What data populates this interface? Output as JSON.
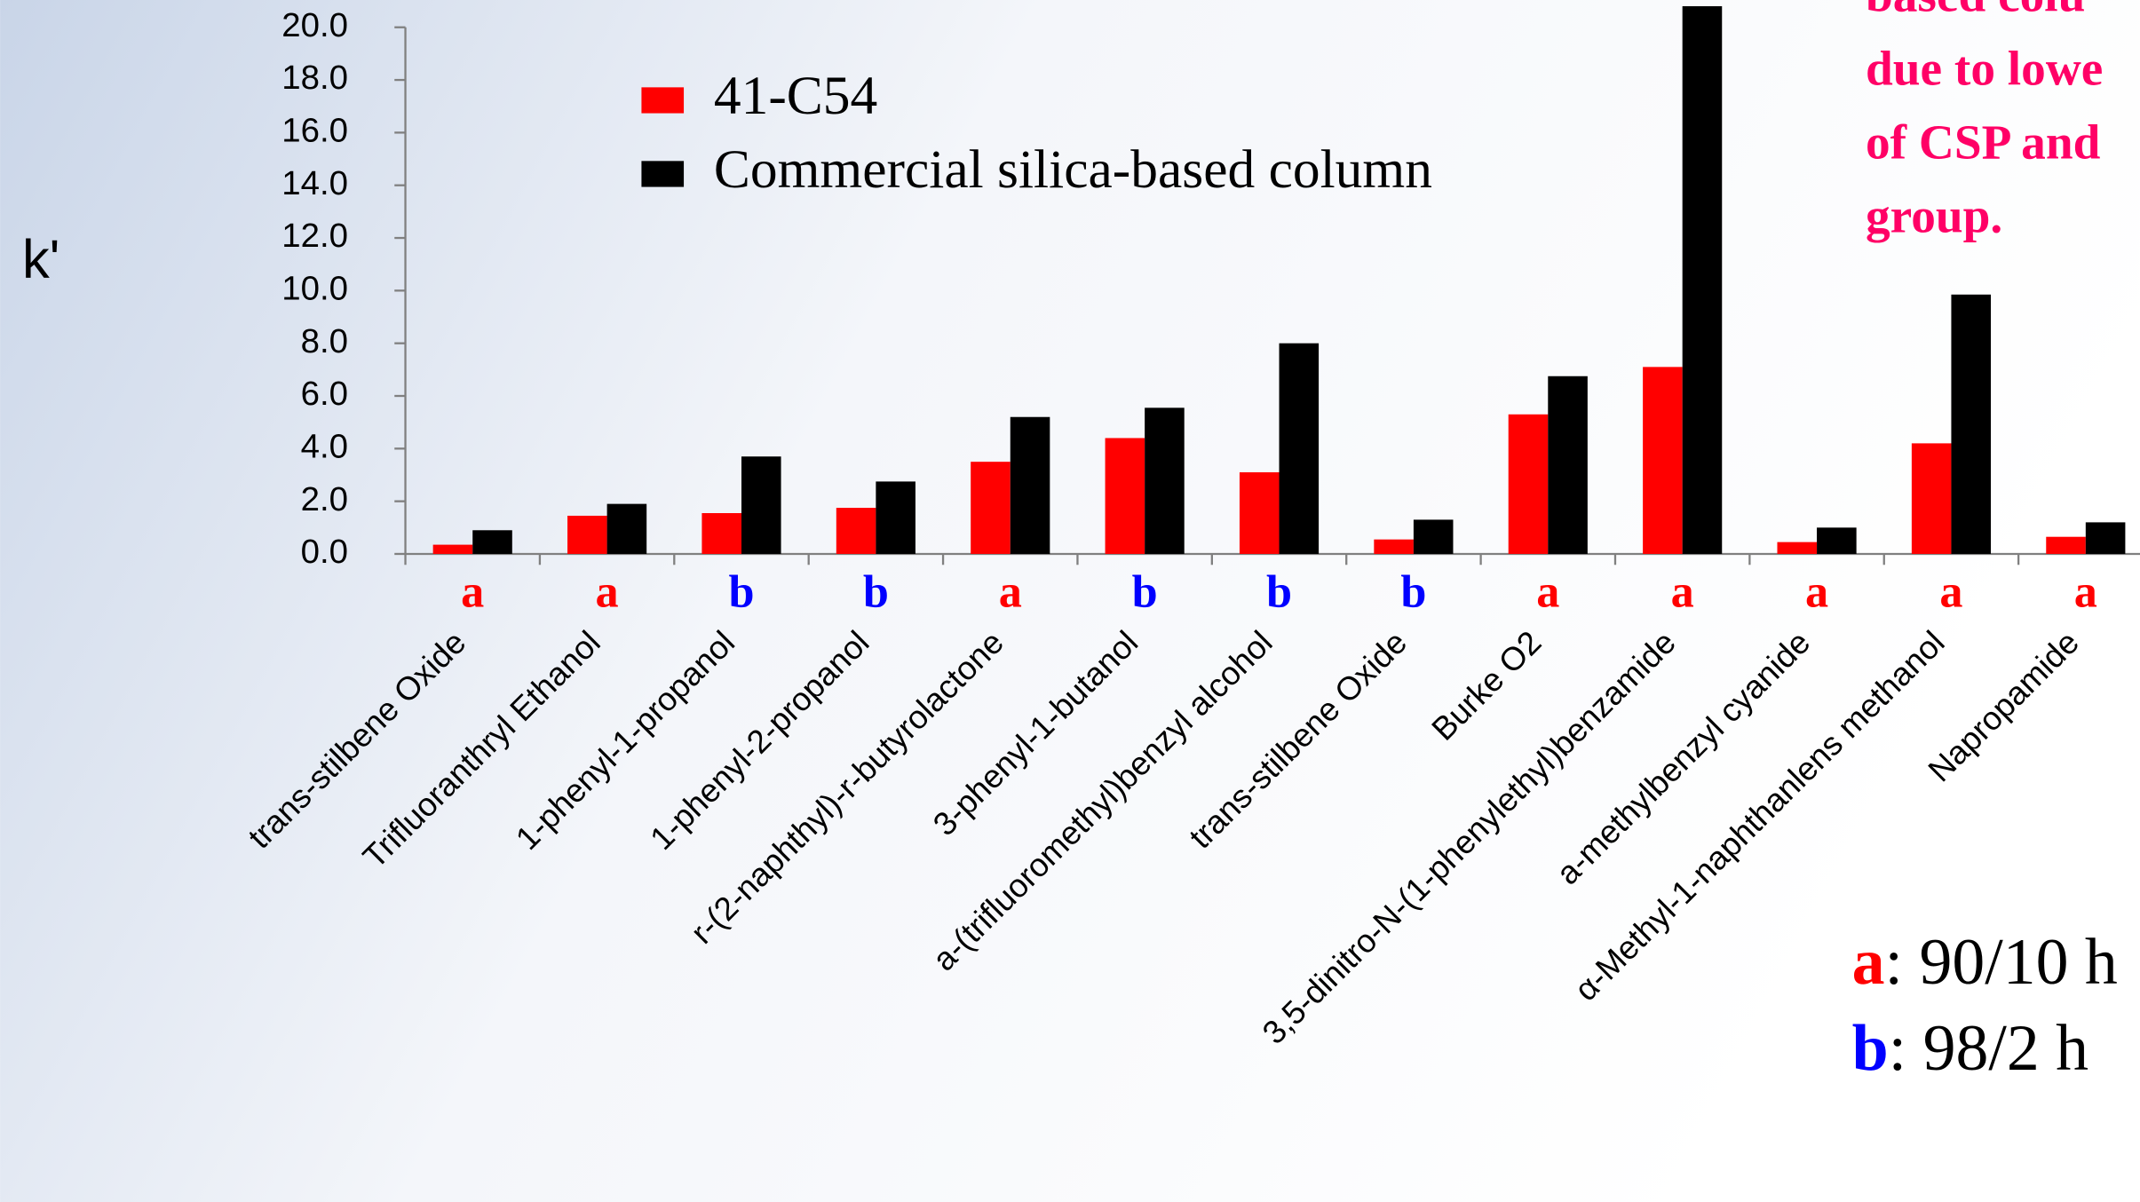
{
  "chart_data": {
    "type": "bar",
    "y_label": "k'",
    "categories": [
      "trans-stilbene Oxide",
      "Trifluoranthryl Ethanol",
      "1-phenyl-1-propanol",
      "1-phenyl-2-propanol",
      "r-(2-naphthyl)-r-butyrolactone",
      "3-phenyl-1-butanol",
      "a-(trifluoromethyl)benzyl alcohol",
      "trans-stilbene Oxide",
      "Burke O2",
      "3,5-dinitro-N-(1-phenylethyl)benzamide",
      "a-methylbenzyl cyanide",
      "α-Methyl-1-naphthanlens methanol",
      "Napropamide"
    ],
    "series": [
      {
        "name": "41-C54",
        "color": "#ff0000",
        "values": [
          0.35,
          1.45,
          1.55,
          1.75,
          3.5,
          4.4,
          3.1,
          0.55,
          5.3,
          7.1,
          0.45,
          4.2,
          0.65
        ]
      },
      {
        "name": "Commercial silica-based column",
        "color": "#000000",
        "values": [
          0.9,
          1.9,
          3.7,
          2.75,
          5.2,
          5.55,
          8.0,
          1.3,
          6.75,
          20.8,
          1.0,
          9.85,
          1.2
        ]
      }
    ],
    "mobile_phase_labels": [
      "a",
      "a",
      "b",
      "b",
      "a",
      "b",
      "b",
      "b",
      "a",
      "a",
      "a",
      "a",
      "a"
    ],
    "mobile_phase_colors": {
      "a": "#ff0000",
      "b": "#0000ff"
    },
    "ylim": [
      0,
      20
    ],
    "yticks": [
      {
        "value": 0,
        "label": "0.0"
      },
      {
        "value": 2,
        "label": "2.0"
      },
      {
        "value": 4,
        "label": "4.0"
      },
      {
        "value": 6,
        "label": "6.0"
      },
      {
        "value": 8,
        "label": "8.0"
      },
      {
        "value": 10,
        "label": "10.0"
      },
      {
        "value": 12,
        "label": "12.0"
      },
      {
        "value": 14,
        "label": "14.0"
      },
      {
        "value": 16,
        "label": "16.0"
      },
      {
        "value": 18,
        "label": "18.0"
      },
      {
        "value": 20,
        "label": "20.0"
      }
    ],
    "annotation_lines": [
      "based colu",
      "due to lowe",
      "of CSP and",
      "group."
    ],
    "annotation_color": "#ff0066",
    "key": [
      {
        "letter": "a",
        "text": ":  90/10 h"
      },
      {
        "letter": "b",
        "text": ":  98/2 h"
      }
    ]
  }
}
